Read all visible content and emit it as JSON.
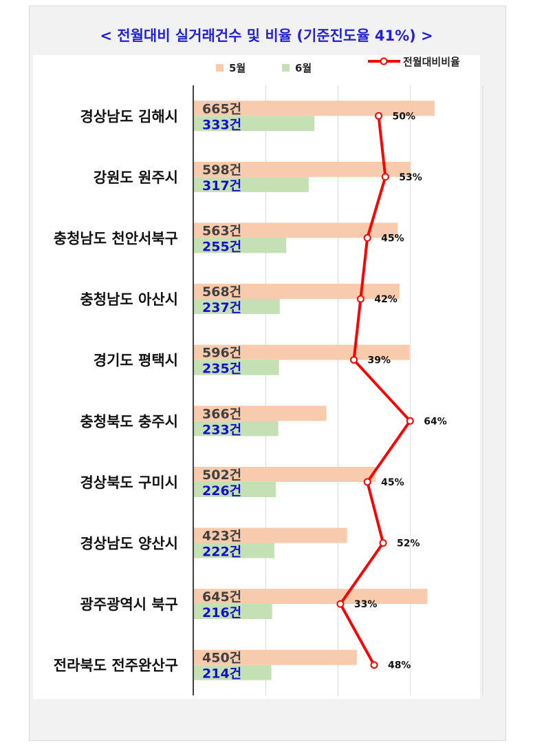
{
  "chart_data": {
    "type": "bar",
    "orientation": "horizontal",
    "title": "< 전월대비 실거래건수 및 비율 (기준진도율 41%) >",
    "categories": [
      "경상남도 김해시",
      "강원도 원주시",
      "충청남도 천안서북구",
      "충청남도 아산시",
      "경기도 평택시",
      "충청북도 충주시",
      "경상북도 구미시",
      "경상남도 양산시",
      "광주광역시 북구",
      "전라북도 전주완산구"
    ],
    "series": [
      {
        "name": "5월",
        "type": "bar",
        "color": "#f8cbad",
        "values": [
          665,
          598,
          563,
          568,
          596,
          366,
          502,
          423,
          645,
          450
        ]
      },
      {
        "name": "6월",
        "type": "bar",
        "color": "#c5e0b4",
        "values": [
          333,
          317,
          255,
          237,
          235,
          233,
          226,
          222,
          216,
          214
        ]
      },
      {
        "name": "전월대비비율",
        "type": "line",
        "color": "#ff0000",
        "values": [
          50,
          53,
          45,
          42,
          39,
          64,
          45,
          52,
          33,
          48
        ]
      }
    ],
    "value_suffix": "건",
    "percent_suffix": "%",
    "bar_axis_range": [
      0,
      800
    ],
    "grid": true,
    "legend_position": "top"
  },
  "legend": {
    "may": "5월",
    "june": "6월",
    "ratio": "전월대비비율"
  }
}
